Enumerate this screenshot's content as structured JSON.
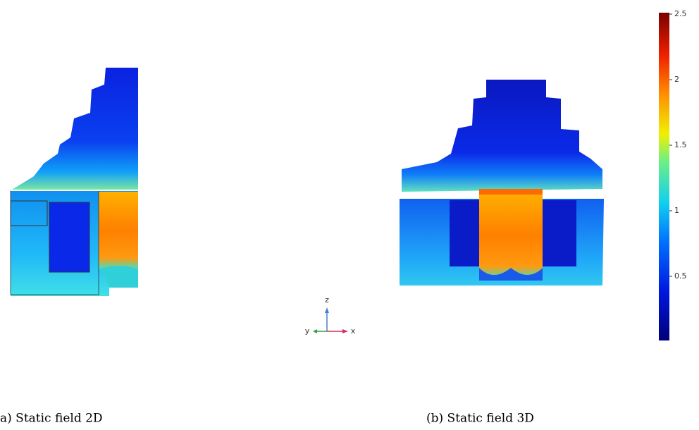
{
  "figures": [
    {
      "caption": "a) Static field 2D"
    },
    {
      "caption": "(b) Static field 3D"
    }
  ],
  "axis_triad": {
    "z": "z",
    "y": "y",
    "x": "x"
  },
  "colorbar": {
    "lim": [
      0,
      2.5
    ],
    "ticks": [
      0.5,
      1,
      1.5,
      2,
      2.5
    ]
  }
}
